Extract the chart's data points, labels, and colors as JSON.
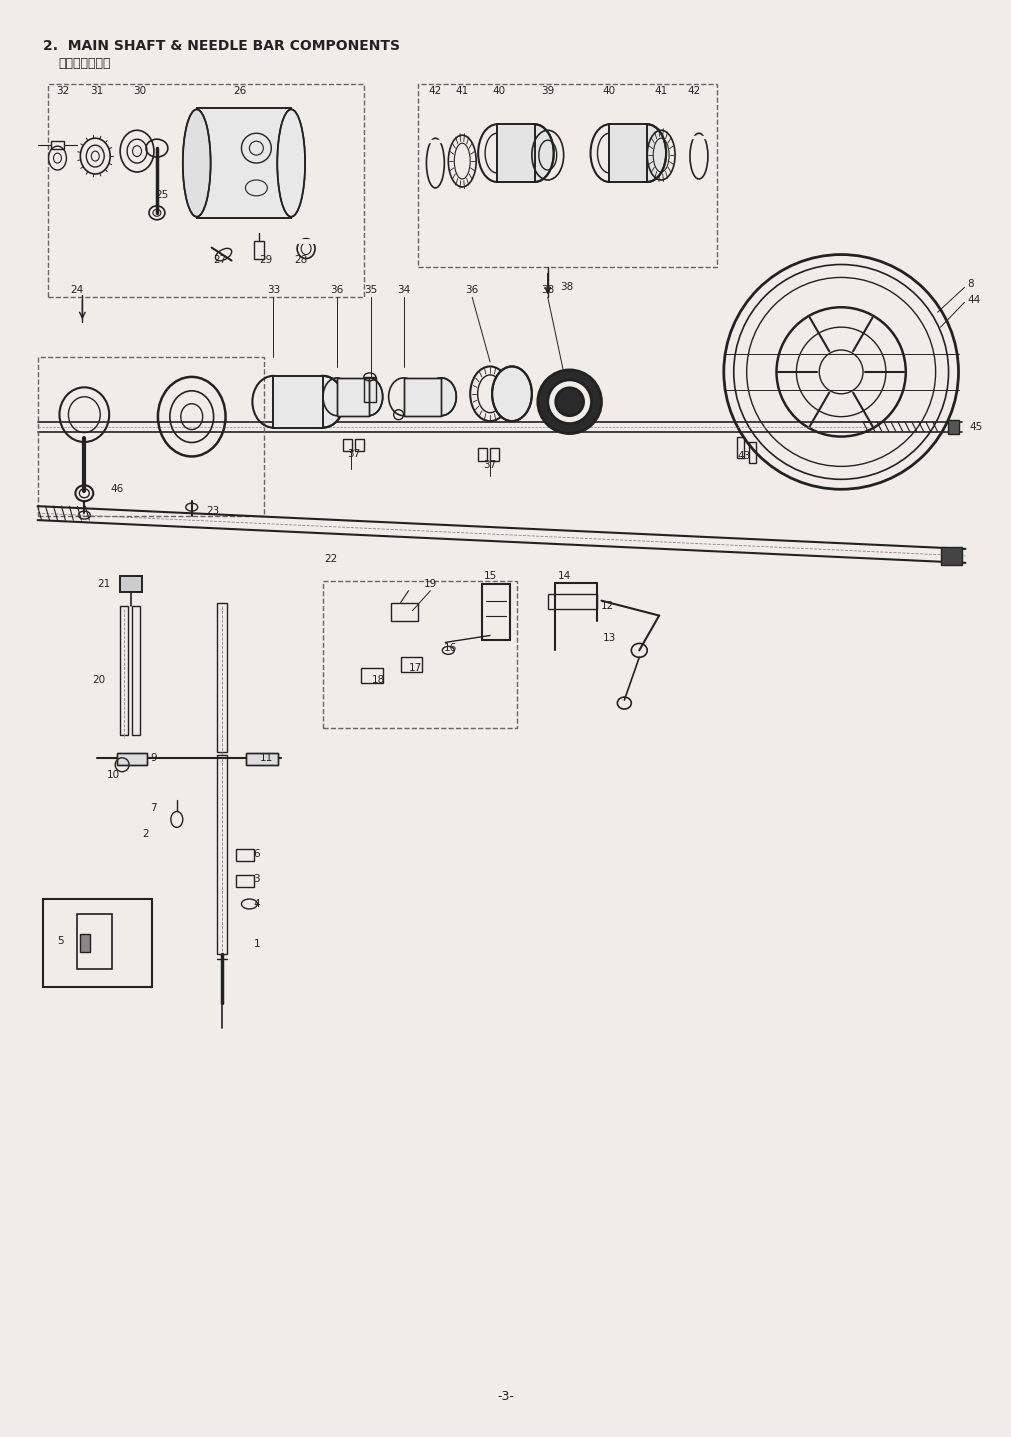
{
  "title_line1": "2.  MAIN SHAFT & NEEDLE BAR COMPONENTS",
  "title_line2": "上軸・针棒関係",
  "page_number": "-3-",
  "bg": "#f0ede8",
  "lc": "#222222",
  "fig_width": 10.12,
  "fig_height": 14.37
}
